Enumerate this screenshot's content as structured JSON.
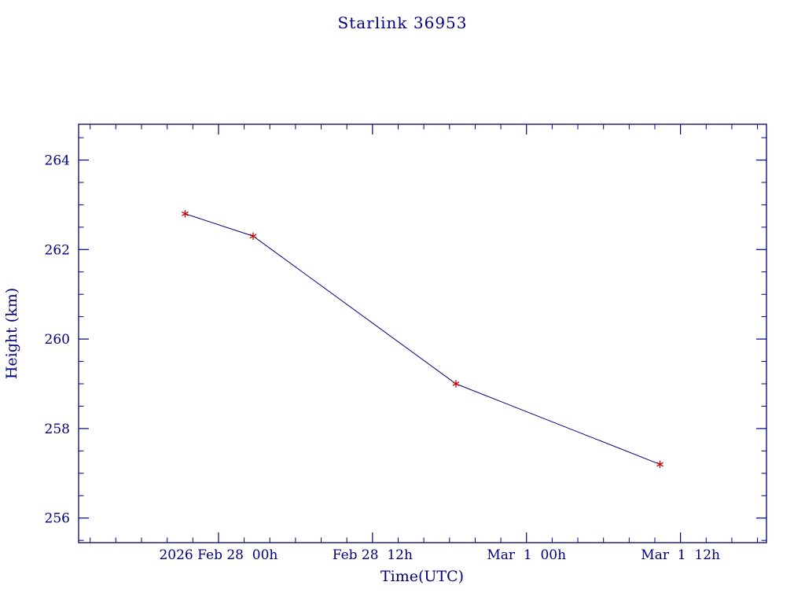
{
  "chart_data": {
    "type": "line",
    "title": "Starlink 36953",
    "xlabel": "Time(UTC)",
    "ylabel": "Height (km)",
    "axis_color": "#000080",
    "background": "#ffffff",
    "grid": false,
    "legend": "none",
    "x_axis": {
      "description": "hours relative to 2026 Feb 28 00h UTC",
      "lim_hours": [
        -10.9,
        42.7
      ],
      "major_ticks": [
        {
          "hours": 0,
          "label": "2026 Feb 28  00h"
        },
        {
          "hours": 12,
          "label": "Feb 28  12h"
        },
        {
          "hours": 24,
          "label": "Mar  1  00h"
        },
        {
          "hours": 36,
          "label": "Mar  1  12h"
        }
      ],
      "minor_tick_step_hours": 2
    },
    "y_axis": {
      "lim": [
        255.45,
        264.8
      ],
      "major_ticks": [
        256,
        258,
        260,
        262,
        264
      ],
      "minor_tick_step": 0.5
    },
    "series": [
      {
        "name": "height",
        "x_hours_from_2026_feb28_00h": [
          -2.6,
          2.7,
          18.5,
          34.4
        ],
        "height_km": [
          262.8,
          262.3,
          259.0,
          257.2
        ],
        "line_color": "#000080",
        "marker": "asterisk",
        "marker_color": "#cc0000"
      }
    ]
  }
}
